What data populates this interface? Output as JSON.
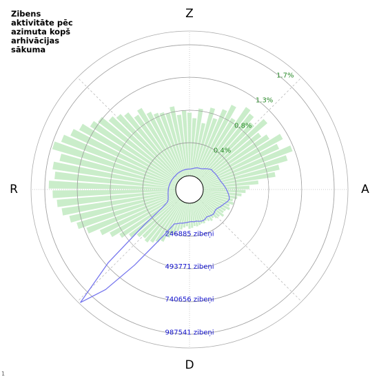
{
  "chart_data": {
    "type": "polar",
    "title": "Zibens aktivitāte pēc azimuta kopš arhivācijas sākuma",
    "directions": [
      {
        "angle": 0,
        "label": "Z"
      },
      {
        "angle": 90,
        "label": "A"
      },
      {
        "angle": 180,
        "label": "D"
      },
      {
        "angle": 270,
        "label": "R"
      }
    ],
    "x": [
      0,
      4,
      8,
      12,
      16,
      20,
      24,
      28,
      32,
      36,
      40,
      44,
      48,
      52,
      56,
      60,
      64,
      68,
      72,
      76,
      80,
      84,
      88,
      92,
      96,
      100,
      104,
      108,
      112,
      116,
      120,
      124,
      128,
      132,
      136,
      140,
      144,
      148,
      152,
      156,
      160,
      164,
      168,
      172,
      176,
      180,
      184,
      188,
      192,
      196,
      200,
      204,
      208,
      212,
      216,
      220,
      224,
      228,
      232,
      236,
      240,
      244,
      248,
      252,
      256,
      260,
      264,
      268,
      272,
      276,
      280,
      284,
      288,
      292,
      296,
      300,
      304,
      308,
      312,
      316,
      320,
      324,
      328,
      332,
      336,
      340,
      344,
      348,
      352,
      356
    ],
    "rlim": [
      0,
      1.88
    ],
    "rticks": [
      {
        "value": 0.43,
        "label": "0.4%"
      },
      {
        "value": 0.85,
        "label": "0.8%"
      },
      {
        "value": 1.28,
        "label": "1.3%"
      },
      {
        "value": 1.7,
        "label": "1.7%"
      }
    ],
    "r2lim": [
      0,
      1090000
    ],
    "r2ticks": [
      {
        "value": 246885,
        "label": "246885 zibeņi"
      },
      {
        "value": 493771,
        "label": "493771 zibeņi"
      },
      {
        "value": 740656,
        "label": "740656 zibeņi"
      },
      {
        "value": 987541,
        "label": "987541 zibeņi"
      }
    ],
    "series": [
      {
        "color": "#c4ebc4",
        "axis": "r",
        "values": [
          0.82,
          0.75,
          0.88,
          0.7,
          0.92,
          0.8,
          0.95,
          1.05,
          0.9,
          1.12,
          1.08,
          1.0,
          1.15,
          0.98,
          1.05,
          1.2,
          1.1,
          1.25,
          1.15,
          1.02,
          0.95,
          0.72,
          0.6,
          0.55,
          0.5,
          0.45,
          0.4,
          0.42,
          0.38,
          0.4,
          0.36,
          0.35,
          0.38,
          0.34,
          0.33,
          0.3,
          0.32,
          0.3,
          0.28,
          0.3,
          0.29,
          0.3,
          0.31,
          0.3,
          0.32,
          0.33,
          0.3,
          0.32,
          0.35,
          0.38,
          0.42,
          0.5,
          0.58,
          0.62,
          0.66,
          0.7,
          0.68,
          0.72,
          0.8,
          0.9,
          1.0,
          1.1,
          1.25,
          1.35,
          1.42,
          1.5,
          1.55,
          1.6,
          1.65,
          1.58,
          1.62,
          1.55,
          1.68,
          1.6,
          1.52,
          1.45,
          1.35,
          1.3,
          1.2,
          1.15,
          1.1,
          1.0,
          1.05,
          0.95,
          0.9,
          0.88,
          0.85,
          0.92,
          0.8,
          0.85
        ]
      },
      {
        "color": "#7777ee",
        "axis": "r2",
        "values": [
          50000,
          52000,
          55000,
          60000,
          65000,
          70000,
          72000,
          75000,
          80000,
          90000,
          100000,
          110000,
          120000,
          118000,
          122000,
          125000,
          128000,
          130000,
          135000,
          140000,
          150000,
          160000,
          170000,
          180000,
          190000,
          200000,
          205000,
          195000,
          180000,
          170000,
          160000,
          150000,
          145000,
          150000,
          155000,
          150000,
          145000,
          140000,
          148000,
          152000,
          150000,
          145000,
          140000,
          142000,
          138000,
          140000,
          145000,
          150000,
          155000,
          160000,
          170000,
          180000,
          260000,
          380000,
          600000,
          880000,
          1080000,
          720000,
          330000,
          150000,
          90000,
          75000,
          70000,
          65000,
          62000,
          60000,
          58000,
          56000,
          55000,
          54000,
          52000,
          50000,
          50000,
          48000,
          48000,
          47000,
          46000,
          46000,
          45000,
          45000,
          46000,
          47000,
          47000,
          48000,
          48000,
          49000,
          49000,
          50000,
          50000,
          50000
        ]
      }
    ],
    "footer_mark": "1"
  }
}
